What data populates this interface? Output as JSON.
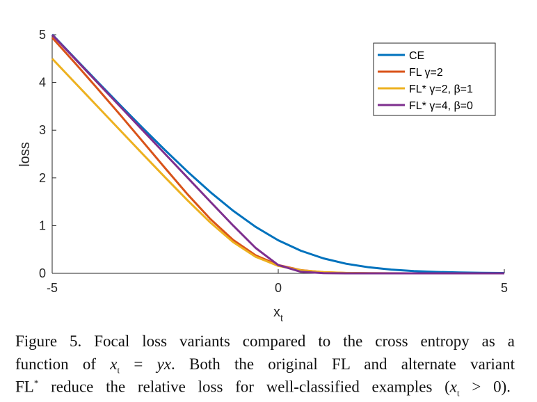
{
  "chart_data": {
    "type": "line",
    "xlabel": "x",
    "xlabel_sub": "t",
    "ylabel": "loss",
    "xlim": [
      -5,
      5
    ],
    "ylim": [
      0,
      5
    ],
    "xticks": [
      "-5",
      "0",
      "5"
    ],
    "yticks": [
      "0",
      "1",
      "2",
      "3",
      "4",
      "5"
    ],
    "grid": false,
    "legend_position": "top-right",
    "x": [
      -5,
      -4.5,
      -4,
      -3.5,
      -3,
      -2.5,
      -2,
      -1.5,
      -1,
      -0.5,
      0,
      0.5,
      1,
      1.5,
      2,
      2.5,
      3,
      3.5,
      4,
      4.5,
      5
    ],
    "series": [
      {
        "name": "CE",
        "color": "#0072BD",
        "values": [
          5.0067,
          4.511,
          4.0181,
          3.5297,
          3.0486,
          2.5789,
          2.1269,
          1.7014,
          1.3133,
          0.9741,
          0.6931,
          0.4741,
          0.3133,
          0.2014,
          0.1269,
          0.0789,
          0.0486,
          0.0297,
          0.0181,
          0.011,
          0.0067
        ]
      },
      {
        "name": "FL γ=2",
        "color": "#D95319",
        "values": [
          4.94,
          4.412,
          3.875,
          3.326,
          2.766,
          2.203,
          1.65,
          1.137,
          0.702,
          0.377,
          0.173,
          0.0676,
          0.0227,
          0.0067,
          0.0018,
          0.0005,
          0.0001,
          0,
          0,
          0,
          0
        ]
      },
      {
        "name": "FL* γ=2, β=1",
        "color": "#EDB120",
        "values": [
          4.5,
          4.0,
          3.5005,
          3.0012,
          2.5034,
          2.0091,
          1.5243,
          1.0635,
          0.6566,
          0.3466,
          0.1566,
          0.0635,
          0.0243,
          0.0091,
          0.0034,
          0.0012,
          0.0005,
          0.0002,
          0.0001,
          0,
          0
        ]
      },
      {
        "name": "FL* γ=4, β=0",
        "color": "#7E2F8E",
        "values": [
          5.0,
          4.5,
          4.0,
          3.5,
          3.0,
          2.5,
          2.0001,
          1.5006,
          1.0045,
          0.5317,
          0.1733,
          0.0317,
          0.0045,
          0.0006,
          0.0001,
          0,
          0,
          0,
          0,
          0,
          0
        ]
      }
    ]
  },
  "caption": {
    "line1": "Figure 5. Focal loss variants compared to the cross entropy as a",
    "line2": {
      "a": "function of ",
      "x": "x",
      "sub": "t",
      "b": " = ",
      "yx": "yx",
      "c": ". Both the original FL and alternate variant"
    },
    "line3": {
      "a": "FL",
      "sup": "*",
      "b": " reduce the relative loss for well-classified examples (",
      "x": "x",
      "sub": "t",
      "c": " > 0)."
    }
  }
}
